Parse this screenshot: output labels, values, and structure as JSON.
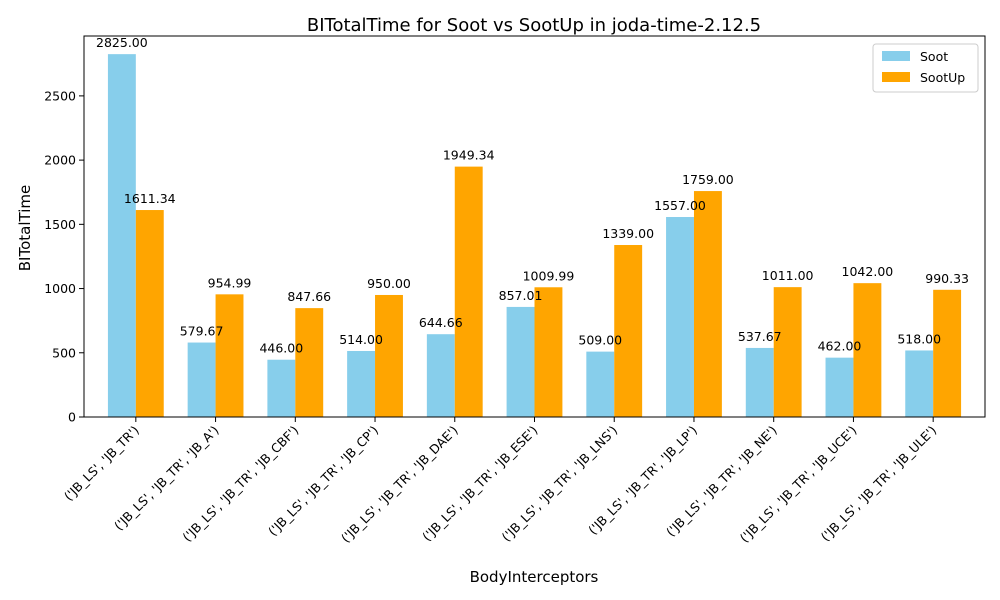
{
  "chart_data": {
    "type": "bar",
    "title": "BITotalTime for Soot vs SootUp in joda-time-2.12.5",
    "xlabel": "BodyInterceptors",
    "ylabel": "BITotalTime",
    "categories": [
      "('JB_LS', 'JB_TR')",
      "('JB_LS', 'JB_TR', 'JB_A')",
      "('JB_LS', 'JB_TR', 'JB_CBF')",
      "('JB_LS', 'JB_TR', 'JB_CP')",
      "('JB_LS', 'JB_TR', 'JB_DAE')",
      "('JB_LS', 'JB_TR', 'JB_ESE')",
      "('JB_LS', 'JB_TR', 'JB_LNS')",
      "('JB_LS', 'JB_TR', 'JB_LP')",
      "('JB_LS', 'JB_TR', 'JB_NE')",
      "('JB_LS', 'JB_TR', 'JB_UCE')",
      "('JB_LS', 'JB_TR', 'JB_ULE')"
    ],
    "series": [
      {
        "name": "Soot",
        "color": "#87ceeb",
        "values": [
          2825.0,
          579.67,
          446.0,
          514.0,
          644.66,
          857.01,
          509.0,
          1557.0,
          537.67,
          462.0,
          518.0
        ],
        "labels": [
          "2825.00",
          "579.67",
          "446.00",
          "514.00",
          "644.66",
          "857.01",
          "509.00",
          "1557.00",
          "537.67",
          "462.00",
          "518.00"
        ]
      },
      {
        "name": "SootUp",
        "color": "#ffa500",
        "values": [
          1611.34,
          954.99,
          847.66,
          950.0,
          1949.34,
          1009.99,
          1339.0,
          1759.0,
          1011.0,
          1042.0,
          990.33
        ],
        "labels": [
          "1611.34",
          "954.99",
          "847.66",
          "950.00",
          "1949.34",
          "1009.99",
          "1339.00",
          "1759.00",
          "1011.00",
          "1042.00",
          "990.33"
        ]
      }
    ],
    "yticks": [
      "0",
      "500",
      "1000",
      "1500",
      "2000",
      "2500"
    ],
    "ylim": [
      0,
      2966.25
    ],
    "legend_position": "top-right",
    "grid": false
  }
}
